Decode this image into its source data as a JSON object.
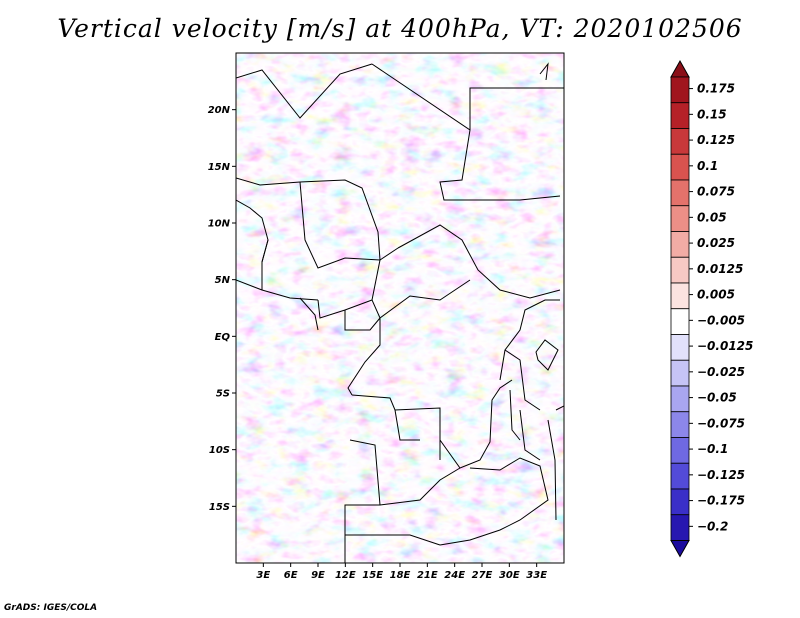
{
  "title": "Vertical velocity [m/s] at 400hPa, VT: 2020102506",
  "credit": "GrADS: IGES/COLA",
  "map": {
    "lon_range": [
      0,
      36
    ],
    "lat_range": [
      -20,
      25
    ],
    "lat_ticks": [
      {
        "value": 20,
        "label": "20N"
      },
      {
        "value": 15,
        "label": "15N"
      },
      {
        "value": 10,
        "label": "10N"
      },
      {
        "value": 5,
        "label": "5N"
      },
      {
        "value": 0,
        "label": "EQ"
      },
      {
        "value": -5,
        "label": "5S"
      },
      {
        "value": -10,
        "label": "10S"
      },
      {
        "value": -15,
        "label": "15S"
      }
    ],
    "lon_ticks": [
      {
        "value": 3,
        "label": "3E"
      },
      {
        "value": 6,
        "label": "6E"
      },
      {
        "value": 9,
        "label": "9E"
      },
      {
        "value": 12,
        "label": "12E"
      },
      {
        "value": 15,
        "label": "15E"
      },
      {
        "value": 18,
        "label": "18E"
      },
      {
        "value": 21,
        "label": "21E"
      },
      {
        "value": 24,
        "label": "24E"
      },
      {
        "value": 27,
        "label": "27E"
      },
      {
        "value": 30,
        "label": "30E"
      },
      {
        "value": 33,
        "label": "33E"
      }
    ]
  },
  "colorbar": {
    "levels": [
      {
        "label": "0.175",
        "color": "#a0151e"
      },
      {
        "label": "0.15",
        "color": "#b52128"
      },
      {
        "label": "0.125",
        "color": "#c8383a"
      },
      {
        "label": "0.1",
        "color": "#d9534f"
      },
      {
        "label": "0.075",
        "color": "#e4726b"
      },
      {
        "label": "0.05",
        "color": "#ec8f87"
      },
      {
        "label": "0.025",
        "color": "#f2aca5"
      },
      {
        "label": "0.0125",
        "color": "#f7c9c4"
      },
      {
        "label": "0.005",
        "color": "#fbe3e0"
      },
      {
        "label": "−0.005",
        "color": "#ffffff"
      },
      {
        "label": "−0.0125",
        "color": "#e2e1fb"
      },
      {
        "label": "−0.025",
        "color": "#c6c4f6"
      },
      {
        "label": "−0.05",
        "color": "#a9a6f0"
      },
      {
        "label": "−0.075",
        "color": "#8c87ea"
      },
      {
        "label": "−0.1",
        "color": "#6f69e2"
      },
      {
        "label": "−0.125",
        "color": "#534bd8"
      },
      {
        "label": "−0.175",
        "color": "#3a2fc8"
      },
      {
        "label": "−0.2",
        "color": "#2717b0"
      }
    ],
    "top_color": "#8a0f18",
    "bottom_color": "#1c0c9e"
  }
}
